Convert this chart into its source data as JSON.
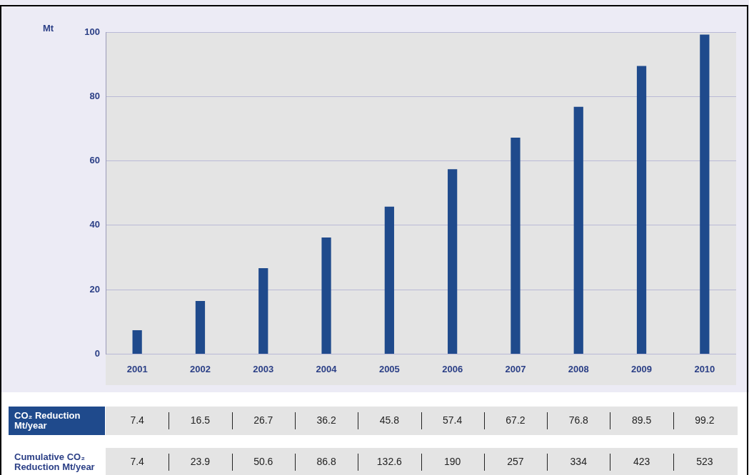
{
  "chart_data": {
    "type": "bar",
    "ylabel": "Mt",
    "categories": [
      "2001",
      "2002",
      "2003",
      "2004",
      "2005",
      "2006",
      "2007",
      "2008",
      "2009",
      "2010"
    ],
    "series": [
      {
        "name": "CO₂ Reduction Mt/year",
        "color": "#1f4a8c",
        "values": [
          7.4,
          16.5,
          26.7,
          36.2,
          45.8,
          57.4,
          67.2,
          76.8,
          89.5,
          99.2
        ]
      }
    ],
    "ylim": [
      0,
      100
    ],
    "yticks": [
      0,
      20,
      40,
      60,
      80,
      100
    ],
    "grid": "y",
    "legend": false,
    "data_labels": true,
    "annotations": [
      "Cumulative CO₂ Reduction Mt/year",
      "7.4",
      "23.9",
      "50.6",
      "86.8",
      "132.6",
      "190",
      "257",
      "334",
      "423",
      "523"
    ]
  }
}
